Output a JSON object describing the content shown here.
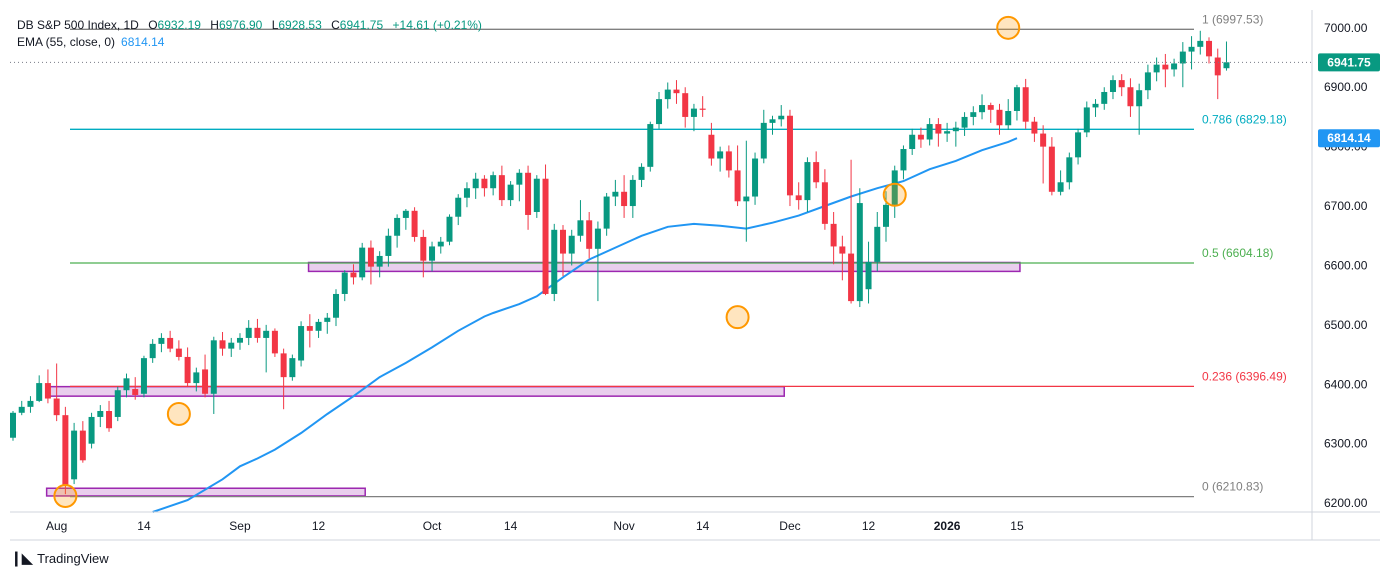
{
  "header": {
    "symbol": "DB S&P 500 Index, 1D",
    "open_label": "O",
    "open": "6932.19",
    "high_label": "H",
    "high": "6976.90",
    "low_label": "L",
    "low": "6928.53",
    "close_label": "C",
    "close": "6941.75",
    "change": "+14.61 (+0.21%)",
    "ema_label": "EMA (55, close, 0)",
    "ema_value": "6814.14"
  },
  "branding": {
    "logo_text": "TradingView"
  },
  "colors": {
    "up": "#089981",
    "down": "#f23645",
    "ema": "#2196f3",
    "fib_1": "#808080",
    "fib_786": "#00acc1",
    "fib_05": "#4caf50",
    "fib_236": "#f23645",
    "fib_0": "#808080",
    "zone_fill": "#e1bee7",
    "zone_stroke": "#9c27b0",
    "marker": "#ff9800"
  },
  "chart_data": {
    "type": "candlestick",
    "title": "DB S&P 500 Index, 1D",
    "y_axis": {
      "min": 6185,
      "max": 7030,
      "ticks": [
        6200,
        6300,
        6400,
        6500,
        6600,
        6700,
        6800,
        6900,
        7000
      ],
      "tick_labels": [
        "6200.00",
        "6300.00",
        "6400.00",
        "6500.00",
        "6600.00",
        "6700.00",
        "6800.00",
        "6900.00",
        "7000.00"
      ],
      "side": "right"
    },
    "x_axis": {
      "ticks": [
        {
          "label": "Aug",
          "index": 5,
          "bold": false
        },
        {
          "label": "14",
          "index": 15,
          "bold": false
        },
        {
          "label": "Sep",
          "index": 26,
          "bold": false
        },
        {
          "label": "12",
          "index": 35,
          "bold": false
        },
        {
          "label": "Oct",
          "index": 48,
          "bold": false
        },
        {
          "label": "14",
          "index": 57,
          "bold": false
        },
        {
          "label": "Nov",
          "index": 70,
          "bold": false
        },
        {
          "label": "14",
          "index": 79,
          "bold": false
        },
        {
          "label": "Dec",
          "index": 89,
          "bold": false
        },
        {
          "label": "12",
          "index": 98,
          "bold": false
        },
        {
          "label": "2026",
          "index": 107,
          "bold": true
        },
        {
          "label": "15",
          "index": 115,
          "bold": false
        }
      ]
    },
    "last_price": {
      "value": 6941.75,
      "label": "6941.75"
    },
    "ema": {
      "name": "EMA (55, close, 0)",
      "label": "6814.14",
      "last": 6814.14,
      "points": [
        [
          16,
          6185
        ],
        [
          20,
          6205
        ],
        [
          24,
          6240
        ],
        [
          26,
          6262
        ],
        [
          28,
          6275
        ],
        [
          30,
          6290
        ],
        [
          33,
          6318
        ],
        [
          36,
          6350
        ],
        [
          39,
          6380
        ],
        [
          42,
          6412
        ],
        [
          45,
          6436
        ],
        [
          48,
          6462
        ],
        [
          51,
          6490
        ],
        [
          54,
          6514
        ],
        [
          55,
          6520
        ],
        [
          58,
          6535
        ],
        [
          60,
          6548
        ],
        [
          63,
          6580
        ],
        [
          66,
          6610
        ],
        [
          69,
          6630
        ],
        [
          72,
          6650
        ],
        [
          75,
          6665
        ],
        [
          78,
          6670
        ],
        [
          81,
          6667
        ],
        [
          84,
          6662
        ],
        [
          87,
          6672
        ],
        [
          90,
          6684
        ],
        [
          93,
          6700
        ],
        [
          96,
          6716
        ],
        [
          99,
          6730
        ],
        [
          102,
          6742
        ],
        [
          105,
          6762
        ],
        [
          108,
          6776
        ],
        [
          111,
          6794
        ],
        [
          114,
          6808
        ],
        [
          115,
          6814.14
        ]
      ]
    },
    "fib_levels": [
      {
        "name": "1",
        "value": 6997.53,
        "label": "1 (6997.53)",
        "color": "#808080"
      },
      {
        "name": "0.786",
        "value": 6829.18,
        "label": "0.786 (6829.18)",
        "color": "#00acc1"
      },
      {
        "name": "0.5",
        "value": 6604.18,
        "label": "0.5 (6604.18)",
        "color": "#4caf50"
      },
      {
        "name": "0.236",
        "value": 6396.49,
        "label": "0.236 (6396.49)",
        "color": "#f23645"
      },
      {
        "name": "0",
        "value": 6210.83,
        "label": "0 (6210.83)",
        "color": "#808080"
      }
    ],
    "zones": [
      {
        "from_index": 5,
        "to_index": 88,
        "top": 6396,
        "bottom": 6380
      },
      {
        "from_index": 35,
        "to_index": 115,
        "top": 6605,
        "bottom": 6590
      },
      {
        "from_index": 5,
        "to_index": 40,
        "top": 6225,
        "bottom": 6212
      }
    ],
    "markers": [
      {
        "index": 6,
        "value": 6212
      },
      {
        "index": 19,
        "value": 6350
      },
      {
        "index": 83,
        "value": 6513
      },
      {
        "index": 101,
        "value": 6719
      },
      {
        "index": 114,
        "value": 7000
      }
    ],
    "candles": [
      [
        6310,
        6355,
        6305,
        6352
      ],
      [
        6352,
        6372,
        6348,
        6362
      ],
      [
        6362,
        6380,
        6352,
        6372
      ],
      [
        6372,
        6415,
        6370,
        6402
      ],
      [
        6402,
        6425,
        6368,
        6376
      ],
      [
        6376,
        6435,
        6338,
        6348
      ],
      [
        6348,
        6362,
        6215,
        6230
      ],
      [
        6240,
        6335,
        6232,
        6322
      ],
      [
        6322,
        6338,
        6268,
        6272
      ],
      [
        6300,
        6352,
        6292,
        6345
      ],
      [
        6345,
        6365,
        6328,
        6355
      ],
      [
        6355,
        6372,
        6320,
        6326
      ],
      [
        6345,
        6396,
        6338,
        6390
      ],
      [
        6390,
        6418,
        6378,
        6410
      ],
      [
        6392,
        6412,
        6374,
        6382
      ],
      [
        6384,
        6448,
        6378,
        6444
      ],
      [
        6444,
        6476,
        6436,
        6468
      ],
      [
        6468,
        6486,
        6454,
        6478
      ],
      [
        6478,
        6490,
        6454,
        6460
      ],
      [
        6460,
        6474,
        6440,
        6446
      ],
      [
        6446,
        6462,
        6396,
        6402
      ],
      [
        6402,
        6428,
        6388,
        6420
      ],
      [
        6425,
        6450,
        6378,
        6384
      ],
      [
        6384,
        6480,
        6350,
        6474
      ],
      [
        6474,
        6488,
        6448,
        6460
      ],
      [
        6460,
        6478,
        6446,
        6470
      ],
      [
        6470,
        6486,
        6458,
        6478
      ],
      [
        6478,
        6508,
        6466,
        6495
      ],
      [
        6495,
        6510,
        6470,
        6478
      ],
      [
        6478,
        6500,
        6420,
        6490
      ],
      [
        6490,
        6494,
        6446,
        6452
      ],
      [
        6452,
        6460,
        6358,
        6412
      ],
      [
        6412,
        6450,
        6406,
        6444
      ],
      [
        6440,
        6506,
        6430,
        6498
      ],
      [
        6498,
        6518,
        6462,
        6490
      ],
      [
        6490,
        6510,
        6478,
        6505
      ],
      [
        6505,
        6520,
        6485,
        6512
      ],
      [
        6512,
        6560,
        6498,
        6552
      ],
      [
        6552,
        6592,
        6540,
        6588
      ],
      [
        6588,
        6602,
        6568,
        6580
      ],
      [
        6580,
        6638,
        6575,
        6630
      ],
      [
        6630,
        6642,
        6568,
        6598
      ],
      [
        6598,
        6624,
        6580,
        6616
      ],
      [
        6616,
        6662,
        6598,
        6650
      ],
      [
        6650,
        6686,
        6630,
        6680
      ],
      [
        6680,
        6695,
        6660,
        6692
      ],
      [
        6692,
        6698,
        6640,
        6648
      ],
      [
        6648,
        6660,
        6580,
        6608
      ],
      [
        6608,
        6640,
        6590,
        6632
      ],
      [
        6632,
        6648,
        6620,
        6640
      ],
      [
        6640,
        6686,
        6634,
        6682
      ],
      [
        6682,
        6720,
        6668,
        6714
      ],
      [
        6714,
        6740,
        6698,
        6730
      ],
      [
        6730,
        6756,
        6712,
        6746
      ],
      [
        6746,
        6752,
        6716,
        6730
      ],
      [
        6730,
        6758,
        6718,
        6752
      ],
      [
        6752,
        6768,
        6700,
        6710
      ],
      [
        6710,
        6742,
        6700,
        6736
      ],
      [
        6736,
        6762,
        6708,
        6756
      ],
      [
        6756,
        6768,
        6660,
        6685
      ],
      [
        6690,
        6752,
        6680,
        6746
      ],
      [
        6746,
        6770,
        6550,
        6552
      ],
      [
        6552,
        6670,
        6540,
        6660
      ],
      [
        6660,
        6668,
        6582,
        6620
      ],
      [
        6620,
        6660,
        6600,
        6650
      ],
      [
        6650,
        6710,
        6640,
        6676
      ],
      [
        6676,
        6690,
        6612,
        6628
      ],
      [
        6628,
        6674,
        6540,
        6662
      ],
      [
        6662,
        6722,
        6650,
        6716
      ],
      [
        6716,
        6744,
        6700,
        6724
      ],
      [
        6724,
        6752,
        6680,
        6700
      ],
      [
        6700,
        6752,
        6680,
        6744
      ],
      [
        6744,
        6772,
        6732,
        6766
      ],
      [
        6766,
        6842,
        6758,
        6838
      ],
      [
        6838,
        6892,
        6830,
        6880
      ],
      [
        6880,
        6908,
        6864,
        6896
      ],
      [
        6896,
        6912,
        6872,
        6890
      ],
      [
        6890,
        6900,
        6832,
        6850
      ],
      [
        6850,
        6872,
        6826,
        6864
      ],
      [
        6864,
        6885,
        6850,
        6862
      ],
      [
        6820,
        6840,
        6768,
        6780
      ],
      [
        6780,
        6800,
        6758,
        6792
      ],
      [
        6792,
        6802,
        6748,
        6760
      ],
      [
        6760,
        6802,
        6700,
        6708
      ],
      [
        6708,
        6810,
        6640,
        6716
      ],
      [
        6716,
        6790,
        6702,
        6780
      ],
      [
        6780,
        6862,
        6772,
        6840
      ],
      [
        6840,
        6852,
        6820,
        6846
      ],
      [
        6846,
        6870,
        6834,
        6852
      ],
      [
        6852,
        6862,
        6700,
        6718
      ],
      [
        6718,
        6740,
        6694,
        6710
      ],
      [
        6710,
        6782,
        6690,
        6774
      ],
      [
        6774,
        6792,
        6730,
        6740
      ],
      [
        6740,
        6762,
        6660,
        6670
      ],
      [
        6670,
        6690,
        6602,
        6632
      ],
      [
        6632,
        6650,
        6575,
        6620
      ],
      [
        6620,
        6778,
        6536,
        6540
      ],
      [
        6540,
        6730,
        6530,
        6705
      ],
      [
        6560,
        6640,
        6536,
        6606
      ],
      [
        6606,
        6690,
        6590,
        6665
      ],
      [
        6665,
        6725,
        6640,
        6702
      ],
      [
        6702,
        6768,
        6680,
        6760
      ],
      [
        6760,
        6802,
        6745,
        6796
      ],
      [
        6796,
        6830,
        6786,
        6820
      ],
      [
        6820,
        6832,
        6798,
        6812
      ],
      [
        6812,
        6848,
        6802,
        6838
      ],
      [
        6838,
        6848,
        6800,
        6822
      ],
      [
        6822,
        6840,
        6808,
        6826
      ],
      [
        6826,
        6842,
        6800,
        6832
      ],
      [
        6832,
        6858,
        6818,
        6850
      ],
      [
        6850,
        6868,
        6836,
        6858
      ],
      [
        6858,
        6888,
        6846,
        6870
      ],
      [
        6870,
        6874,
        6840,
        6862
      ],
      [
        6862,
        6872,
        6820,
        6836
      ],
      [
        6836,
        6880,
        6828,
        6860
      ],
      [
        6860,
        6904,
        6844,
        6900
      ],
      [
        6900,
        6914,
        6830,
        6842
      ],
      [
        6842,
        6850,
        6808,
        6822
      ],
      [
        6822,
        6836,
        6738,
        6800
      ],
      [
        6800,
        6816,
        6718,
        6724
      ],
      [
        6724,
        6760,
        6718,
        6740
      ],
      [
        6740,
        6790,
        6728,
        6782
      ],
      [
        6782,
        6830,
        6770,
        6824
      ],
      [
        6824,
        6876,
        6816,
        6866
      ],
      [
        6866,
        6880,
        6850,
        6872
      ],
      [
        6872,
        6900,
        6862,
        6892
      ],
      [
        6892,
        6920,
        6880,
        6912
      ],
      [
        6912,
        6922,
        6885,
        6900
      ],
      [
        6900,
        6915,
        6850,
        6868
      ],
      [
        6868,
        6906,
        6820,
        6895
      ],
      [
        6895,
        6938,
        6880,
        6925
      ],
      [
        6925,
        6950,
        6910,
        6938
      ],
      [
        6938,
        6956,
        6900,
        6930
      ],
      [
        6930,
        6948,
        6918,
        6940
      ],
      [
        6940,
        6976,
        6900,
        6960
      ],
      [
        6960,
        6986,
        6930,
        6968
      ],
      [
        6968,
        6995,
        6955,
        6978
      ],
      [
        6978,
        6984,
        6940,
        6952
      ],
      [
        6950,
        6965,
        6880,
        6920
      ],
      [
        6932,
        6977,
        6928,
        6942
      ]
    ]
  }
}
